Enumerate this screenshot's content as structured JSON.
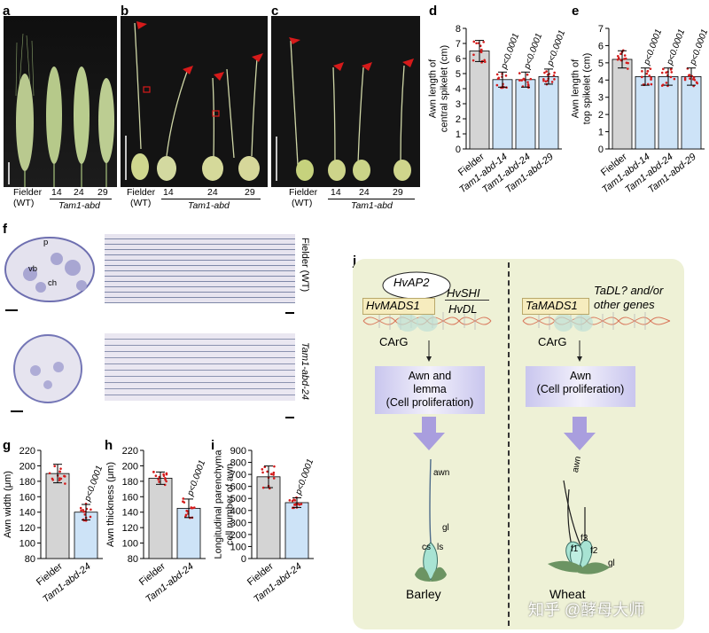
{
  "panels": {
    "a": "a",
    "b": "b",
    "c": "c",
    "d": "d",
    "e": "e",
    "f": "f",
    "g": "g",
    "h": "h",
    "i": "i",
    "j": "j"
  },
  "photo_labels": {
    "fielder": "Fielder",
    "wt": "(WT)",
    "n14": "14",
    "n24": "24",
    "n29": "29",
    "tam": "Tam1-abd",
    "f_tag_wt": "Fielder (WT)",
    "f_tag_mut": "Tam1-abd-24",
    "tissue": {
      "p": "p",
      "vb": "vb",
      "ch": "ch"
    }
  },
  "chart_data": [
    {
      "id": "d",
      "type": "bar",
      "ylabel": "Awn length of\ncentral spikelet (cm)",
      "ylim": [
        0,
        8
      ],
      "yticks": [
        0,
        1,
        2,
        3,
        4,
        5,
        6,
        7,
        8
      ],
      "categories": [
        "Fielder",
        "Tam1-abd-14",
        "Tam1-abd-24",
        "Tam1-abd-29"
      ],
      "values": [
        6.5,
        4.6,
        4.6,
        4.8
      ],
      "errors": [
        0.7,
        0.5,
        0.5,
        0.5
      ],
      "pvalues": [
        "",
        "p<0.0001",
        "p<0.0001",
        "p<0.0001"
      ],
      "colors": [
        "#d4d4d4",
        "#cde3f7",
        "#cde3f7",
        "#cde3f7"
      ]
    },
    {
      "id": "e",
      "type": "bar",
      "ylabel": "Awn length of\ntop spikelet (cm)",
      "ylim": [
        0,
        7
      ],
      "yticks": [
        0,
        1,
        2,
        3,
        4,
        5,
        6,
        7
      ],
      "categories": [
        "Fielder",
        "Tam1-abd-14",
        "Tam1-abd-24",
        "Tam1-abd-29"
      ],
      "values": [
        5.2,
        4.2,
        4.2,
        4.2
      ],
      "errors": [
        0.5,
        0.5,
        0.5,
        0.5
      ],
      "pvalues": [
        "",
        "p<0.0001",
        "p<0.0001",
        "p<0.0001"
      ],
      "colors": [
        "#d4d4d4",
        "#cde3f7",
        "#cde3f7",
        "#cde3f7"
      ]
    },
    {
      "id": "g",
      "type": "bar",
      "ylabel": "Awn width (μm)",
      "ylim": [
        80,
        220
      ],
      "yticks": [
        80,
        100,
        120,
        140,
        160,
        180,
        200,
        220
      ],
      "categories": [
        "Fielder",
        "Tam1-abd-24"
      ],
      "values": [
        190,
        140
      ],
      "errors": [
        12,
        10
      ],
      "pvalues": [
        "",
        "p<0.0001"
      ],
      "colors": [
        "#d4d4d4",
        "#cde3f7"
      ]
    },
    {
      "id": "h",
      "type": "bar",
      "ylabel": "Awn thickness (μm)",
      "ylim": [
        80,
        220
      ],
      "yticks": [
        80,
        100,
        120,
        140,
        160,
        180,
        200,
        220
      ],
      "categories": [
        "Fielder",
        "Tam1-abd-24"
      ],
      "values": [
        184,
        145
      ],
      "errors": [
        8,
        12
      ],
      "pvalues": [
        "",
        "p<0.0001"
      ],
      "colors": [
        "#d4d4d4",
        "#cde3f7"
      ]
    },
    {
      "id": "i",
      "type": "bar",
      "ylabel": "Longitudinal parenchyma\ncell number of awn",
      "ylim": [
        0,
        900
      ],
      "yticks": [
        0,
        100,
        200,
        300,
        400,
        500,
        600,
        700,
        800,
        900
      ],
      "categories": [
        "Fielder",
        "Tam1-abd-24"
      ],
      "values": [
        680,
        465
      ],
      "errors": [
        90,
        40
      ],
      "pvalues": [
        "",
        "p<0.0001"
      ],
      "colors": [
        "#d4d4d4",
        "#cde3f7"
      ]
    }
  ],
  "diagram": {
    "barley": {
      "hvap2": "HvAP2",
      "hvmads1": "HvMADS1",
      "hvshi": "HvSHI",
      "hvdl": "HvDL",
      "carg": "CArG",
      "box": "Awn and\nlemma\n(Cell proliferation)",
      "title": "Barley",
      "awn": "awn",
      "gl": "gl",
      "cs": "cs",
      "ls": "ls"
    },
    "wheat": {
      "tamads1": "TaMADS1",
      "tadl": "TaDL? and/or\nother genes",
      "carg": "CArG",
      "box": "Awn\n(Cell proliferation)",
      "title": "Wheat",
      "awn": "awn",
      "f1": "f1",
      "f2": "f2",
      "f3": "f3",
      "gl": "gl"
    },
    "watermark": "知乎 @酵母大师"
  }
}
